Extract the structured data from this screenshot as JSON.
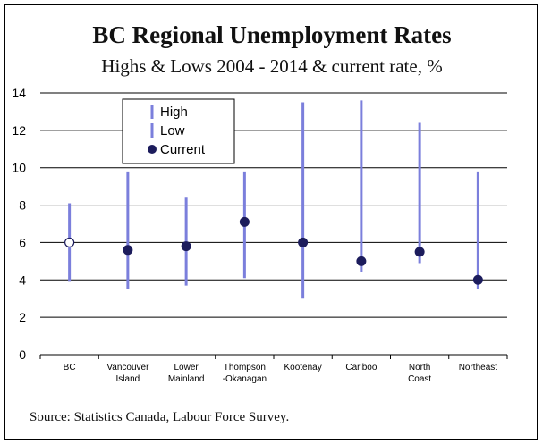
{
  "colors": {
    "range_line": "#7b7fdc",
    "current_dot": "#1c1c5c",
    "bc_dot_fill": "#ffffff",
    "grid": "#000000"
  },
  "chart_data": {
    "type": "range-dot",
    "title": "BC Regional Unemployment Rates",
    "subtitle": "Highs & Lows 2004 - 2014 & current rate, %",
    "ylim": [
      0,
      14
    ],
    "yticks": [
      0,
      2,
      4,
      6,
      8,
      10,
      12,
      14
    ],
    "grid": true,
    "legend_position": "top-left",
    "legend": [
      "High",
      "Low",
      "Current"
    ],
    "categories": [
      [
        "BC"
      ],
      [
        "Vancouver",
        "Island"
      ],
      [
        "Lower",
        "Mainland"
      ],
      [
        "Thompson",
        "-Okanagan"
      ],
      [
        "Kootenay"
      ],
      [
        "Cariboo"
      ],
      [
        "North",
        "Coast"
      ],
      [
        "Northeast"
      ]
    ],
    "high": [
      8.1,
      9.8,
      8.4,
      9.8,
      13.5,
      13.6,
      12.4,
      9.8
    ],
    "low": [
      3.9,
      3.5,
      3.7,
      4.1,
      3.0,
      4.4,
      4.9,
      3.5
    ],
    "current": [
      6.0,
      5.6,
      5.8,
      7.1,
      6.0,
      5.0,
      5.5,
      4.0
    ],
    "open_marker_index": 0
  },
  "footer": {
    "source": "Source: Statistics Canada, Labour Force Survey."
  }
}
